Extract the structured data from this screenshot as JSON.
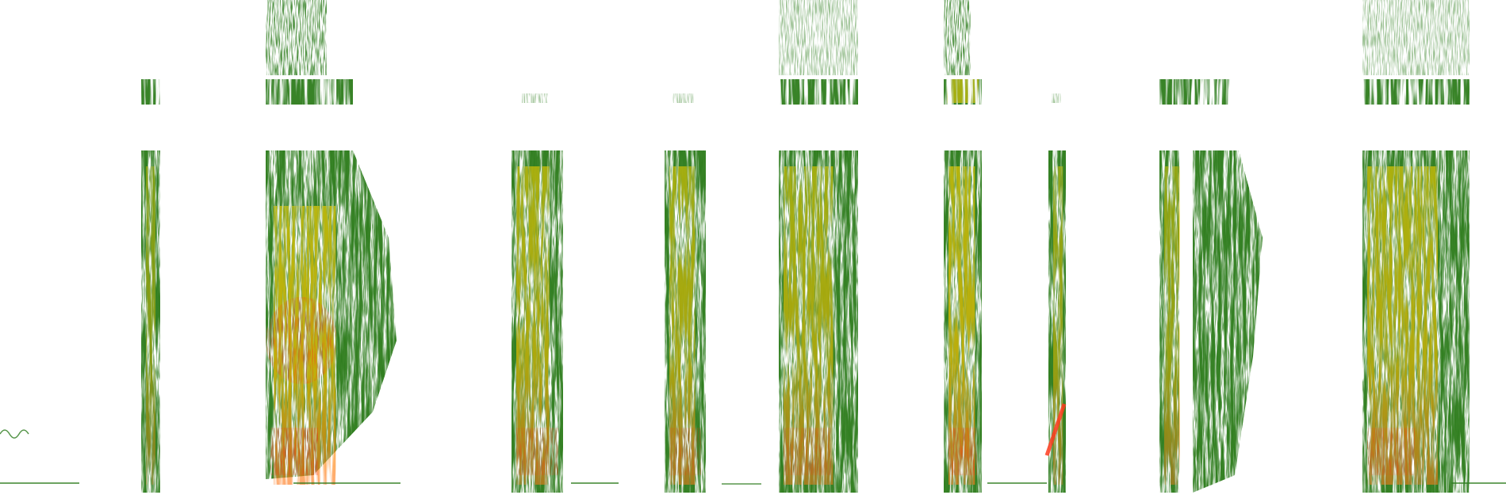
{
  "image": {
    "kind": "spectrogram",
    "background": "#ffffff",
    "palette": {
      "low": "#2e7d1f",
      "mid": "#c9d400",
      "high": "#ffd200",
      "peak": "#ff3b1f"
    },
    "bands": {
      "upper_visible": true,
      "gap_visible": true,
      "lower_visible": true
    },
    "segments": [
      {
        "id": "s1",
        "shape": "column",
        "upper": true,
        "hot": 0.15
      },
      {
        "id": "s2",
        "shape": "fan",
        "upper": true,
        "hot": 0.75
      },
      {
        "id": "s3",
        "shape": "column",
        "upper": false,
        "hot": 0.55
      },
      {
        "id": "s4",
        "shape": "column",
        "upper": false,
        "hot": 0.5
      },
      {
        "id": "s5",
        "shape": "block",
        "upper": true,
        "hot": 0.5
      },
      {
        "id": "s6",
        "shape": "column",
        "upper": true,
        "hot": 0.7
      },
      {
        "id": "s7",
        "shape": "thin",
        "upper": false,
        "hot": 0.3
      },
      {
        "id": "s8",
        "shape": "split",
        "upper": true,
        "hot": 0.3
      },
      {
        "id": "s9",
        "shape": "block",
        "upper": true,
        "hot": 0.6
      }
    ]
  }
}
